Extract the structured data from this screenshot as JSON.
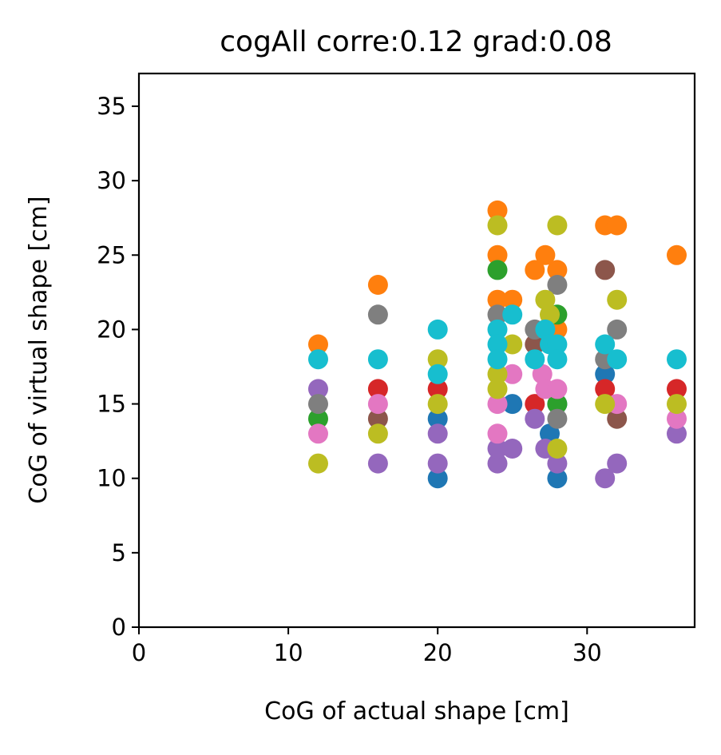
{
  "chart_data": {
    "type": "scatter",
    "title": "cogAll corre:0.12 grad:0.08",
    "xlabel": "CoG of actual shape [cm]",
    "ylabel": "CoG of virtual shape [cm]",
    "xlim": [
      0,
      37.2
    ],
    "ylim": [
      0,
      37.2
    ],
    "xticks": [
      0,
      10,
      20,
      30
    ],
    "yticks": [
      0,
      5,
      10,
      15,
      20,
      25,
      30,
      35
    ],
    "grid": false,
    "legend": "none",
    "series": [
      {
        "color": "#1f77b4",
        "points": [
          [
            20,
            10
          ],
          [
            20,
            14
          ],
          [
            25,
            15
          ],
          [
            27.5,
            13
          ],
          [
            28,
            10
          ],
          [
            31.2,
            17
          ],
          [
            28,
            15
          ]
        ]
      },
      {
        "color": "#ff7f0e",
        "points": [
          [
            12,
            19
          ],
          [
            16,
            23
          ],
          [
            24,
            28
          ],
          [
            24,
            25
          ],
          [
            24,
            22
          ],
          [
            25,
            22
          ],
          [
            26.5,
            24
          ],
          [
            27.2,
            25
          ],
          [
            28,
            24
          ],
          [
            28,
            20
          ],
          [
            31.2,
            27
          ],
          [
            32,
            27
          ],
          [
            36,
            25
          ]
        ]
      },
      {
        "color": "#2ca02c",
        "points": [
          [
            12,
            14
          ],
          [
            24,
            24
          ],
          [
            28,
            21
          ],
          [
            28,
            15
          ]
        ]
      },
      {
        "color": "#d62728",
        "points": [
          [
            16,
            16
          ],
          [
            20,
            16
          ],
          [
            26.5,
            15
          ],
          [
            31.2,
            16
          ],
          [
            36,
            16
          ]
        ]
      },
      {
        "color": "#9467bd",
        "points": [
          [
            12,
            16
          ],
          [
            16,
            11
          ],
          [
            20,
            11
          ],
          [
            20,
            13
          ],
          [
            24,
            11
          ],
          [
            24,
            12
          ],
          [
            25,
            12
          ],
          [
            26.5,
            14
          ],
          [
            27.2,
            12
          ],
          [
            28,
            11
          ],
          [
            31.2,
            10
          ],
          [
            32,
            11
          ],
          [
            36,
            13
          ]
        ]
      },
      {
        "color": "#8c564b",
        "points": [
          [
            16,
            14
          ],
          [
            26.5,
            19
          ],
          [
            31.2,
            24
          ],
          [
            32,
            14
          ]
        ]
      },
      {
        "color": "#e377c2",
        "points": [
          [
            12,
            13
          ],
          [
            16,
            15
          ],
          [
            24,
            15
          ],
          [
            24,
            13
          ],
          [
            25,
            17
          ],
          [
            27,
            17
          ],
          [
            27.2,
            16
          ],
          [
            28,
            16
          ],
          [
            32,
            15
          ],
          [
            36,
            14
          ]
        ]
      },
      {
        "color": "#7f7f7f",
        "points": [
          [
            12,
            15
          ],
          [
            16,
            21
          ],
          [
            24,
            21
          ],
          [
            26.5,
            20
          ],
          [
            28,
            23
          ],
          [
            28,
            14
          ],
          [
            31.2,
            18
          ],
          [
            32,
            20
          ]
        ]
      },
      {
        "color": "#bcbd22",
        "points": [
          [
            12,
            11
          ],
          [
            16,
            13
          ],
          [
            20,
            18
          ],
          [
            20,
            15
          ],
          [
            24,
            27
          ],
          [
            24,
            17
          ],
          [
            24,
            16
          ],
          [
            25,
            19
          ],
          [
            27.2,
            22
          ],
          [
            27.5,
            21
          ],
          [
            28,
            27
          ],
          [
            28,
            12
          ],
          [
            31.2,
            15
          ],
          [
            32,
            22
          ],
          [
            36,
            15
          ]
        ]
      },
      {
        "color": "#17becf",
        "points": [
          [
            12,
            18
          ],
          [
            16,
            18
          ],
          [
            20,
            20
          ],
          [
            20,
            17
          ],
          [
            24,
            20
          ],
          [
            24,
            19
          ],
          [
            24,
            18
          ],
          [
            25,
            21
          ],
          [
            26.5,
            18
          ],
          [
            27.2,
            20
          ],
          [
            27.5,
            19
          ],
          [
            28,
            19
          ],
          [
            28,
            18
          ],
          [
            31.2,
            19
          ],
          [
            32,
            18
          ],
          [
            36,
            18
          ]
        ]
      }
    ]
  }
}
